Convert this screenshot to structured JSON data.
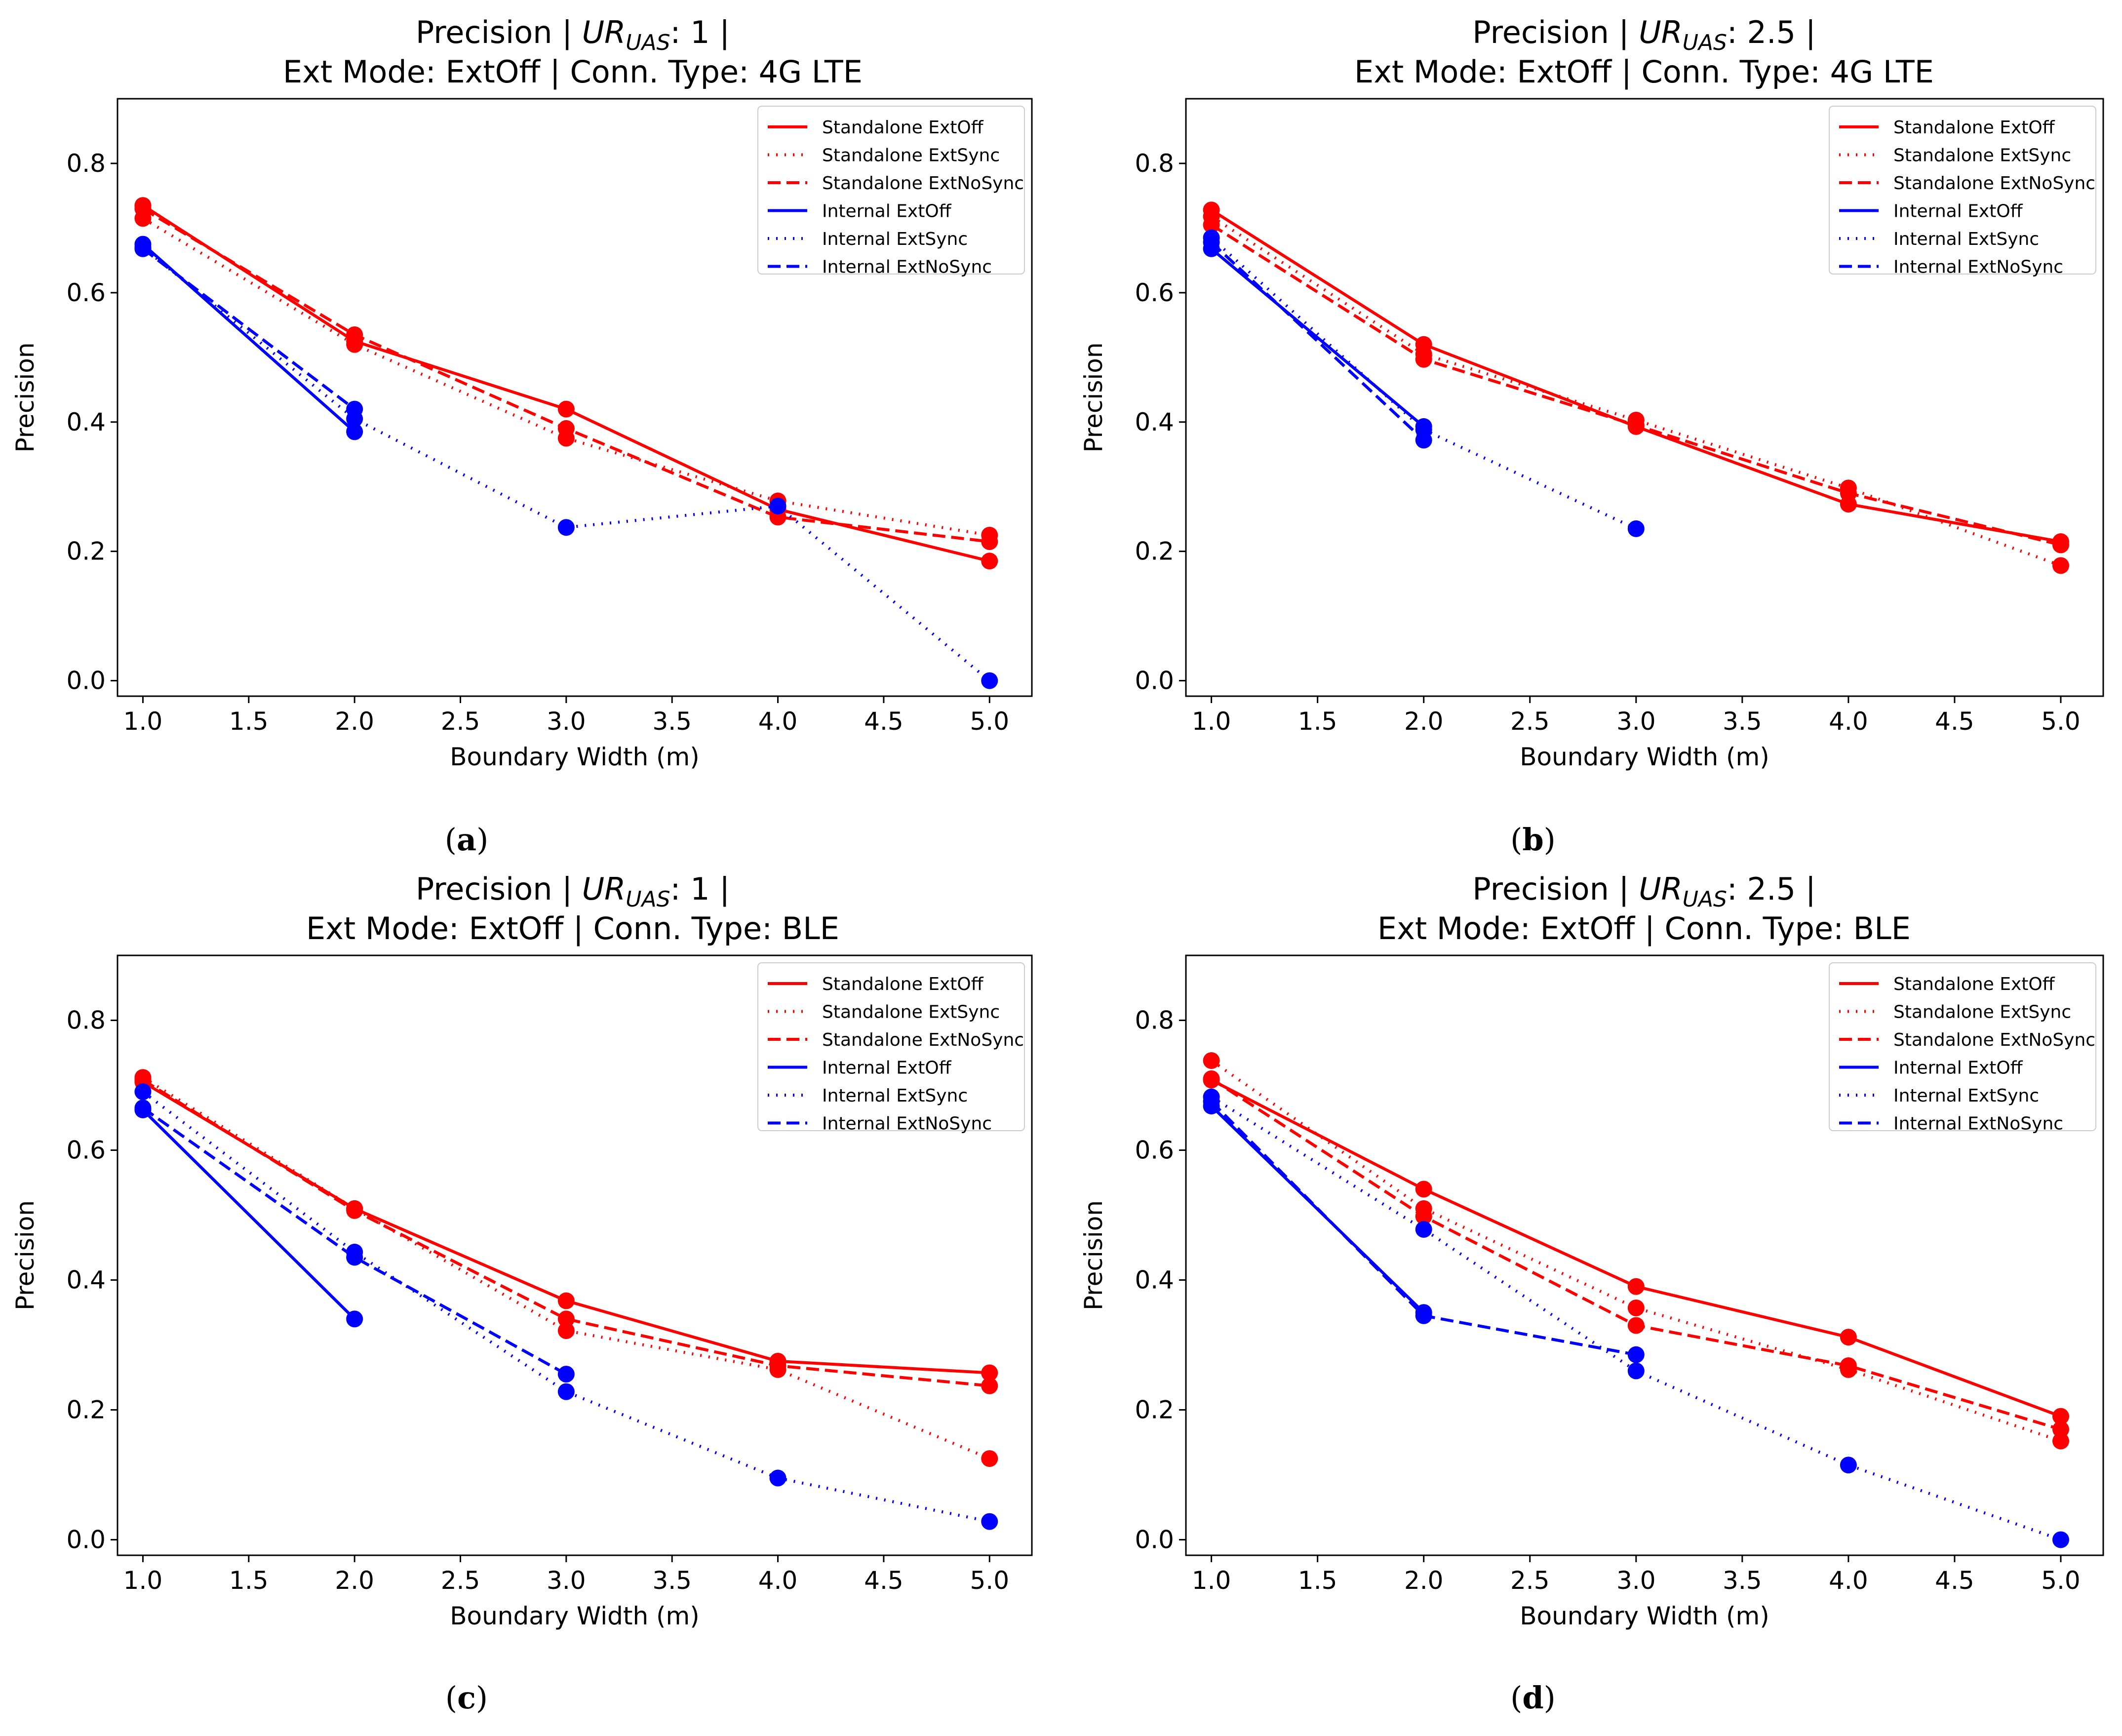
{
  "legend_labels": [
    "Standalone ExtOff",
    "Standalone ExtSync",
    "Standalone ExtNoSync",
    "Internal ExtOff",
    "Internal ExtSync",
    "Internal ExtNoSync"
  ],
  "colors": {
    "standalone": "#ff0000",
    "internal": "#0000ff"
  },
  "chart_data": [
    {
      "type": "line",
      "title_line1_pre": "Precision | ",
      "title_ur": "UR",
      "title_sub": "UAS",
      "title_line1_post": ": 1 |",
      "title_line2": "Ext Mode: ExtOff | Conn. Type: 4G LTE",
      "xlabel": "Boundary  Width (m)",
      "ylabel": "Precision",
      "caption_open": "(",
      "caption_letter": "a",
      "caption_close": ")",
      "xlim": [
        0.88,
        5.2
      ],
      "ylim": [
        -0.024,
        0.9
      ],
      "xticks": [
        "1.0",
        "1.5",
        "2.0",
        "2.5",
        "3.0",
        "3.5",
        "4.0",
        "4.5",
        "5.0"
      ],
      "yticks": [
        "0.0",
        "0.2",
        "0.4",
        "0.6",
        "0.8"
      ],
      "legend_position": "top-right",
      "series": [
        {
          "name": "Standalone ExtOff",
          "x": [
            1,
            2,
            3,
            4,
            5
          ],
          "y": [
            0.735,
            0.525,
            0.42,
            0.265,
            0.185
          ]
        },
        {
          "name": "Standalone ExtSync",
          "x": [
            1,
            2,
            3,
            4,
            5
          ],
          "y": [
            0.715,
            0.52,
            0.375,
            0.278,
            0.225
          ]
        },
        {
          "name": "Standalone ExtNoSync",
          "x": [
            1,
            2,
            3,
            4,
            5
          ],
          "y": [
            0.73,
            0.535,
            0.39,
            0.253,
            0.215
          ]
        },
        {
          "name": "Internal ExtOff",
          "x": [
            1,
            2
          ],
          "y": [
            0.675,
            0.385
          ]
        },
        {
          "name": "Internal ExtSync",
          "x": [
            1,
            2,
            3,
            4,
            5
          ],
          "y": [
            0.67,
            0.405,
            0.237,
            0.27,
            0.0
          ]
        },
        {
          "name": "Internal ExtNoSync",
          "x": [
            1,
            2
          ],
          "y": [
            0.668,
            0.42
          ]
        }
      ]
    },
    {
      "type": "line",
      "title_line1_pre": "Precision | ",
      "title_ur": "UR",
      "title_sub": "UAS",
      "title_line1_post": ": 2.5 |",
      "title_line2": "Ext Mode: ExtOff | Conn. Type: 4G LTE",
      "xlabel": "Boundary  Width (m)",
      "ylabel": "Precision",
      "caption_open": "(",
      "caption_letter": "b",
      "caption_close": ")",
      "xlim": [
        0.88,
        5.2
      ],
      "ylim": [
        -0.024,
        0.9
      ],
      "xticks": [
        "1.0",
        "1.5",
        "2.0",
        "2.5",
        "3.0",
        "3.5",
        "4.0",
        "4.5",
        "5.0"
      ],
      "yticks": [
        "0.0",
        "0.2",
        "0.4",
        "0.6",
        "0.8"
      ],
      "legend_position": "top-right",
      "series": [
        {
          "name": "Standalone ExtOff",
          "x": [
            1,
            2,
            3,
            4,
            5
          ],
          "y": [
            0.728,
            0.52,
            0.393,
            0.273,
            0.215
          ]
        },
        {
          "name": "Standalone ExtSync",
          "x": [
            1,
            2,
            3,
            4,
            5
          ],
          "y": [
            0.718,
            0.505,
            0.403,
            0.298,
            0.178
          ]
        },
        {
          "name": "Standalone ExtNoSync",
          "x": [
            1,
            2,
            3,
            4,
            5
          ],
          "y": [
            0.705,
            0.497,
            0.395,
            0.29,
            0.21
          ]
        },
        {
          "name": "Internal ExtOff",
          "x": [
            1,
            2
          ],
          "y": [
            0.668,
            0.393
          ]
        },
        {
          "name": "Internal ExtSync",
          "x": [
            1,
            2,
            3
          ],
          "y": [
            0.685,
            0.388,
            0.235
          ]
        },
        {
          "name": "Internal ExtNoSync",
          "x": [
            1,
            2
          ],
          "y": [
            0.678,
            0.372
          ]
        }
      ]
    },
    {
      "type": "line",
      "title_line1_pre": "Precision | ",
      "title_ur": "UR",
      "title_sub": "UAS",
      "title_line1_post": ": 1 |",
      "title_line2": "Ext Mode: ExtOff | Conn. Type: BLE",
      "xlabel": "Boundary  Width (m)",
      "ylabel": "Precision",
      "caption_open": "(",
      "caption_letter": "c",
      "caption_close": ")",
      "xlim": [
        0.88,
        5.2
      ],
      "ylim": [
        -0.024,
        0.9
      ],
      "xticks": [
        "1.0",
        "1.5",
        "2.0",
        "2.5",
        "3.0",
        "3.5",
        "4.0",
        "4.5",
        "5.0"
      ],
      "yticks": [
        "0.0",
        "0.2",
        "0.4",
        "0.6",
        "0.8"
      ],
      "legend_position": "top-right",
      "series": [
        {
          "name": "Standalone ExtOff",
          "x": [
            1,
            2,
            3,
            4,
            5
          ],
          "y": [
            0.705,
            0.51,
            0.368,
            0.275,
            0.257
          ]
        },
        {
          "name": "Standalone ExtSync",
          "x": [
            1,
            2,
            3,
            4,
            5
          ],
          "y": [
            0.712,
            0.51,
            0.322,
            0.262,
            0.125
          ]
        },
        {
          "name": "Standalone ExtNoSync",
          "x": [
            1,
            2,
            3,
            4,
            5
          ],
          "y": [
            0.708,
            0.507,
            0.34,
            0.268,
            0.237
          ]
        },
        {
          "name": "Internal ExtOff",
          "x": [
            1,
            2
          ],
          "y": [
            0.662,
            0.34
          ]
        },
        {
          "name": "Internal ExtSync",
          "x": [
            1,
            2,
            3,
            4,
            5
          ],
          "y": [
            0.69,
            0.443,
            0.228,
            0.095,
            0.028
          ]
        },
        {
          "name": "Internal ExtNoSync",
          "x": [
            1,
            2,
            3
          ],
          "y": [
            0.665,
            0.435,
            0.255
          ]
        }
      ]
    },
    {
      "type": "line",
      "title_line1_pre": "Precision | ",
      "title_ur": "UR",
      "title_sub": "UAS",
      "title_line1_post": ": 2.5 |",
      "title_line2": "Ext Mode: ExtOff | Conn. Type: BLE",
      "xlabel": "Boundary  Width (m)",
      "ylabel": "Precision",
      "caption_open": "(",
      "caption_letter": "d",
      "caption_close": ")",
      "xlim": [
        0.88,
        5.2
      ],
      "ylim": [
        -0.024,
        0.9
      ],
      "xticks": [
        "1.0",
        "1.5",
        "2.0",
        "2.5",
        "3.0",
        "3.5",
        "4.0",
        "4.5",
        "5.0"
      ],
      "yticks": [
        "0.0",
        "0.2",
        "0.4",
        "0.6",
        "0.8"
      ],
      "legend_position": "top-right",
      "series": [
        {
          "name": "Standalone ExtOff",
          "x": [
            1,
            2,
            3,
            4,
            5
          ],
          "y": [
            0.708,
            0.54,
            0.39,
            0.312,
            0.19
          ]
        },
        {
          "name": "Standalone ExtSync",
          "x": [
            1,
            2,
            3,
            4,
            5
          ],
          "y": [
            0.738,
            0.51,
            0.357,
            0.262,
            0.152
          ]
        },
        {
          "name": "Standalone ExtNoSync",
          "x": [
            1,
            2,
            3,
            4,
            5
          ],
          "y": [
            0.71,
            0.498,
            0.33,
            0.268,
            0.17
          ]
        },
        {
          "name": "Internal ExtOff",
          "x": [
            1,
            2
          ],
          "y": [
            0.668,
            0.35
          ]
        },
        {
          "name": "Internal ExtSync",
          "x": [
            1,
            2,
            3,
            4,
            5
          ],
          "y": [
            0.682,
            0.478,
            0.26,
            0.115,
            0.0
          ]
        },
        {
          "name": "Internal ExtNoSync",
          "x": [
            1,
            2,
            3
          ],
          "y": [
            0.675,
            0.345,
            0.285
          ]
        }
      ]
    }
  ]
}
